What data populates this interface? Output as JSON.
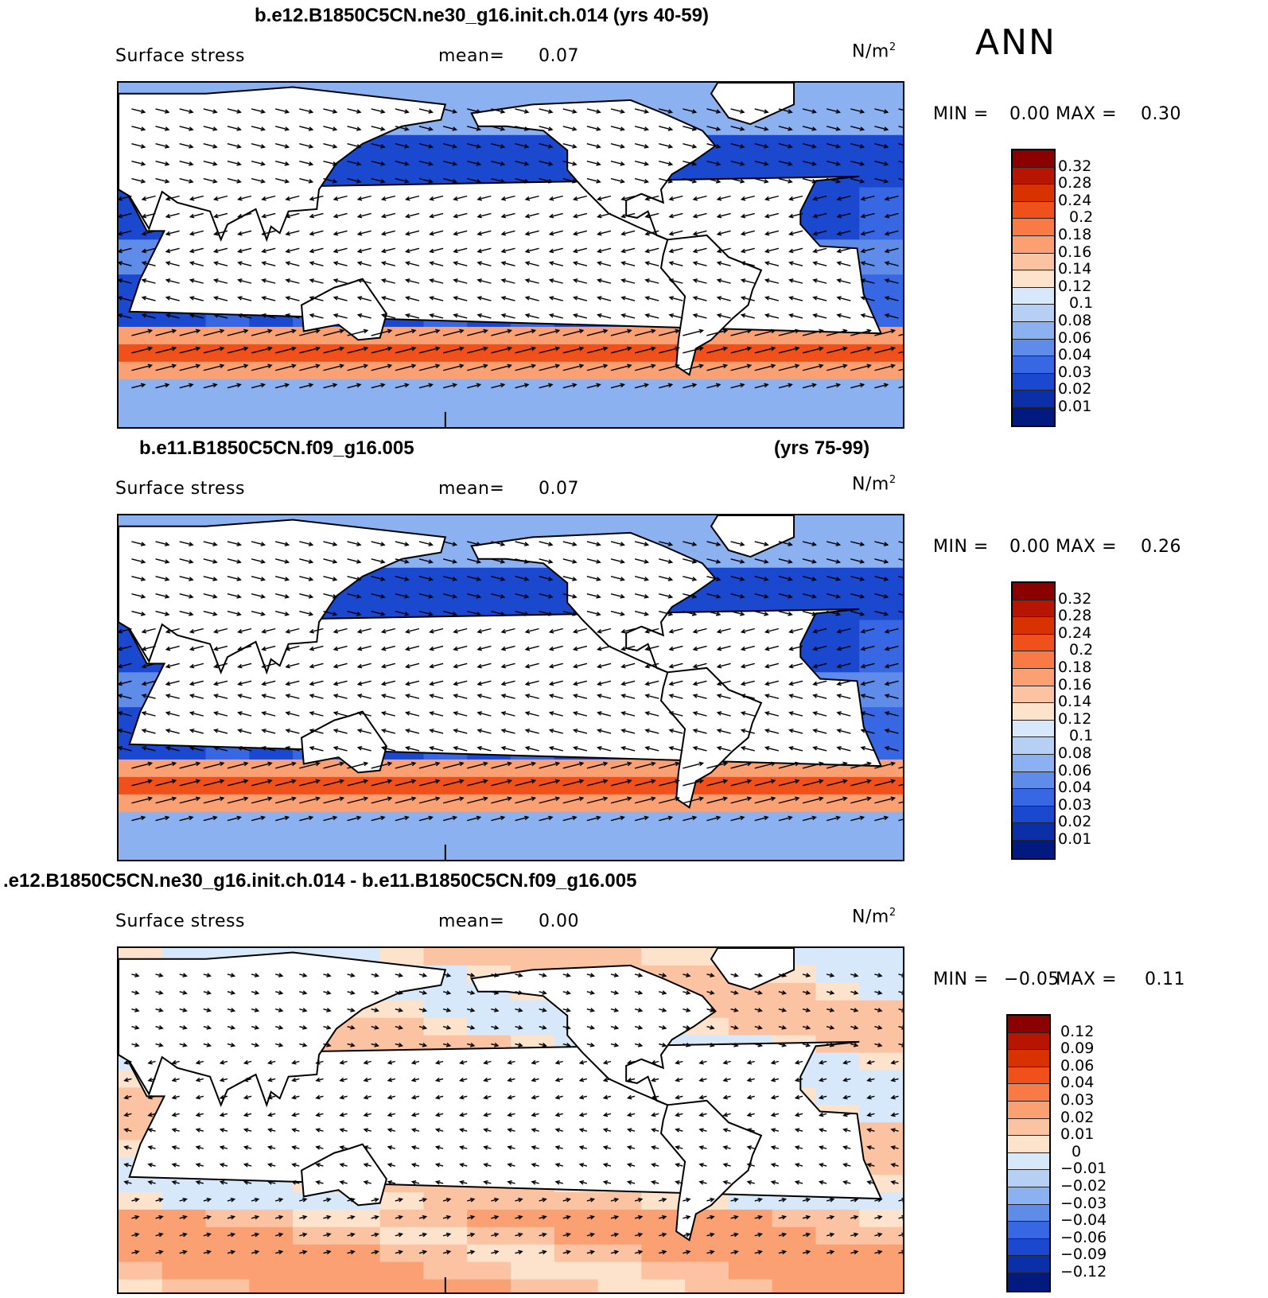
{
  "season": "ANN",
  "panels": [
    {
      "title": "b.e12.B1850C5CN.ne30_g16.init.ch.014 (yrs 40-59)",
      "title_right": "",
      "field": "Surface stress",
      "mean_label": "mean=",
      "mean": "0.07",
      "units_base": "N/m",
      "units_exp": "2",
      "min_label": "MIN =",
      "min": "0.00",
      "max_label": "MAX =",
      "max": "0.30",
      "levels": [
        "0.32",
        "0.28",
        "0.24",
        "0.2",
        "0.18",
        "0.16",
        "0.14",
        "0.12",
        "0.1",
        "0.08",
        "0.06",
        "0.04",
        "0.03",
        "0.02",
        "0.01"
      ],
      "colors": [
        "#8b0000",
        "#b81500",
        "#d83200",
        "#f0501a",
        "#f97a44",
        "#fba072",
        "#fcc3a2",
        "#fde2cc",
        "#d8e8fb",
        "#b5cff5",
        "#8cb1f0",
        "#5f8ce8",
        "#3767e2",
        "#1a48cf",
        "#0a2fa8",
        "#001a80"
      ]
    },
    {
      "title": "b.e11.B1850C5CN.f09_g16.005",
      "title_right": "(yrs 75-99)",
      "field": "Surface stress",
      "mean_label": "mean=",
      "mean": "0.07",
      "units_base": "N/m",
      "units_exp": "2",
      "min_label": "MIN =",
      "min": "0.00",
      "max_label": "MAX =",
      "max": "0.26",
      "levels": [
        "0.32",
        "0.28",
        "0.24",
        "0.2",
        "0.18",
        "0.16",
        "0.14",
        "0.12",
        "0.1",
        "0.08",
        "0.06",
        "0.04",
        "0.03",
        "0.02",
        "0.01"
      ],
      "colors": [
        "#8b0000",
        "#b81500",
        "#d83200",
        "#f0501a",
        "#f97a44",
        "#fba072",
        "#fcc3a2",
        "#fde2cc",
        "#d8e8fb",
        "#b5cff5",
        "#8cb1f0",
        "#5f8ce8",
        "#3767e2",
        "#1a48cf",
        "#0a2fa8",
        "#001a80"
      ]
    },
    {
      "title": ".e12.B1850C5CN.ne30_g16.init.ch.014 - b.e11.B1850C5CN.f09_g16.005",
      "title_right": "",
      "field": "Surface stress",
      "mean_label": "mean=",
      "mean": "0.00",
      "units_base": "N/m",
      "units_exp": "2",
      "min_label": "MIN =",
      "min": "−0.05",
      "max_label": "MAX =",
      "max": "0.11",
      "levels": [
        "0.12",
        "0.09",
        "0.06",
        "0.04",
        "0.03",
        "0.02",
        "0.01",
        "0",
        "−0.01",
        "−0.02",
        "−0.03",
        "−0.04",
        "−0.06",
        "−0.09",
        "−0.12"
      ],
      "colors": [
        "#8b0000",
        "#b81500",
        "#d83200",
        "#f0501a",
        "#f97a44",
        "#fba072",
        "#fcc3a2",
        "#fde2cc",
        "#d8e8fb",
        "#b5cff5",
        "#8cb1f0",
        "#5f8ce8",
        "#3767e2",
        "#1a48cf",
        "#0a2fa8",
        "#001a80"
      ]
    }
  ]
}
